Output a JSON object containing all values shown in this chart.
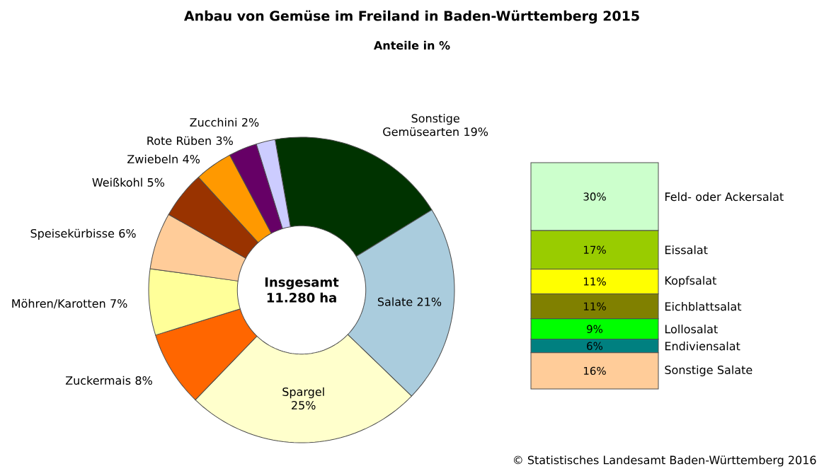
{
  "chart_data": [
    {
      "type": "donut",
      "title": "Anbau von Gemüse im Freiland in Baden-Württemberg 2015",
      "subtitle": "Anteile in %",
      "categories": [
        "Sonstige Gemüsearten",
        "Salate",
        "Spargel",
        "Zuckermais",
        "Möhren/Karotten",
        "Speisekürbisse",
        "Weißkohl",
        "Zwiebeln",
        "Rote Rüben",
        "Zucchini"
      ],
      "values": [
        19,
        21,
        25,
        8,
        7,
        6,
        5,
        4,
        3,
        2
      ],
      "value_labels": [
        "19%",
        "21%",
        "25%",
        "8%",
        "7%",
        "6%",
        "5%",
        "4%",
        "3%",
        "2%"
      ],
      "colors": [
        "#003300",
        "#aaccdd",
        "#ffffcc",
        "#ff6600",
        "#ffff99",
        "#ffcc99",
        "#993300",
        "#ff9900",
        "#660066",
        "#ccccff"
      ],
      "annotations": [
        "Insgesamt 11.280 ha",
        "© Statistisches Landesamt Baden-Württemberg 2016"
      ]
    },
    {
      "type": "bar",
      "stacked": true,
      "categories": [
        null
      ],
      "series": [
        {
          "name": "Sonstige Salate",
          "color": "#ffcc99",
          "values": [
            16
          ],
          "value_labels": [
            "16%"
          ]
        },
        {
          "name": "Endiviensalat",
          "color": "#008080",
          "values": [
            6
          ],
          "value_labels": [
            "6%"
          ]
        },
        {
          "name": "Lollosalat",
          "color": "#00ff00",
          "values": [
            9
          ],
          "value_labels": [
            "9%"
          ]
        },
        {
          "name": "Eichblattsalat",
          "color": "#808000",
          "values": [
            11
          ],
          "value_labels": [
            "11%"
          ]
        },
        {
          "name": "Kopfsalat",
          "color": "#ffff00",
          "values": [
            11
          ],
          "value_labels": [
            "11%"
          ]
        },
        {
          "name": "Eissalat",
          "color": "#99cc00",
          "values": [
            17
          ],
          "value_labels": [
            "17%"
          ]
        },
        {
          "name": "Feld- oder Ackersalat",
          "color": "#ccffcc",
          "values": [
            30
          ],
          "value_labels": [
            "30%"
          ]
        }
      ]
    }
  ]
}
